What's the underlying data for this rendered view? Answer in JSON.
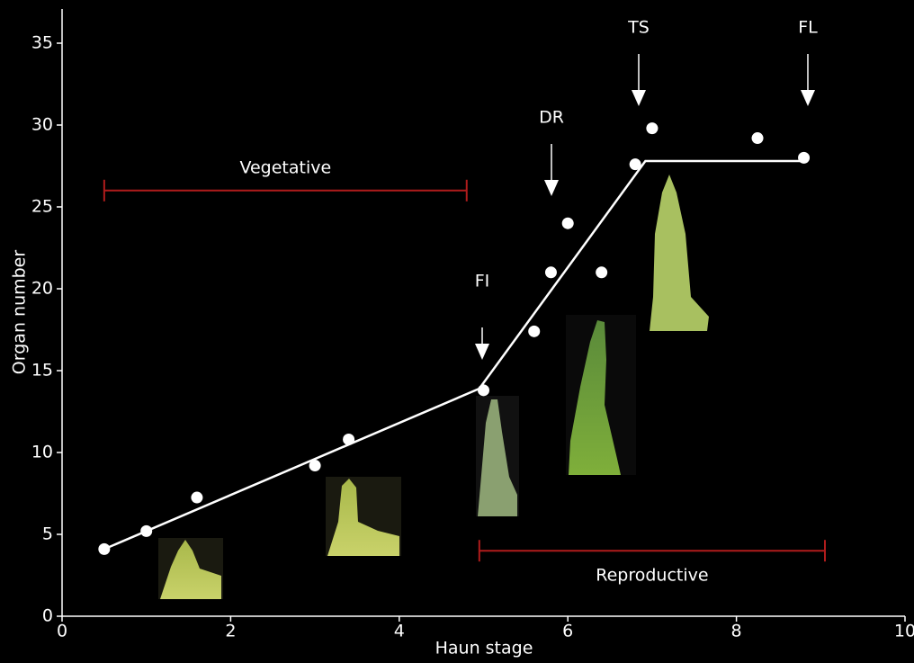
{
  "chart_data": {
    "type": "scatter",
    "xlabel": "Haun stage",
    "ylabel": "Organ number",
    "xlim": [
      0,
      10
    ],
    "xticks": [
      0,
      2,
      4,
      6,
      8,
      10
    ],
    "ylim": [
      0,
      35
    ],
    "yticks": [
      0,
      5,
      10,
      15,
      20,
      25,
      30,
      35
    ],
    "series": [
      {
        "color": "#ffffff",
        "x": [
          0.5,
          1.0,
          1.6,
          3.0,
          3.4,
          5.0,
          5.6,
          5.8,
          6.0,
          6.4,
          6.8,
          7.0,
          8.25,
          8.8
        ],
        "values": [
          4.1,
          5.2,
          7.25,
          9.2,
          10.8,
          13.8,
          17.4,
          21.0,
          24.0,
          21.0,
          27.6,
          29.8,
          29.2,
          28.0
        ]
      },
      {
        "color": "#ffffff",
        "x": [
          0.5,
          4.95,
          6.92,
          8.8
        ],
        "values": [
          4.1,
          13.9,
          27.8,
          27.8
        ]
      }
    ],
    "phases": [
      {
        "label": "Vegetative",
        "color": "#b01c1c",
        "start": 0.5,
        "end": 4.8,
        "level": 26.0
      },
      {
        "label": "Reproductive",
        "color": "#b01c1c",
        "start": 4.95,
        "end": 9.05,
        "level": 4.0
      }
    ],
    "annotations": [
      "FI",
      "DR",
      "TS",
      "FL"
    ]
  }
}
